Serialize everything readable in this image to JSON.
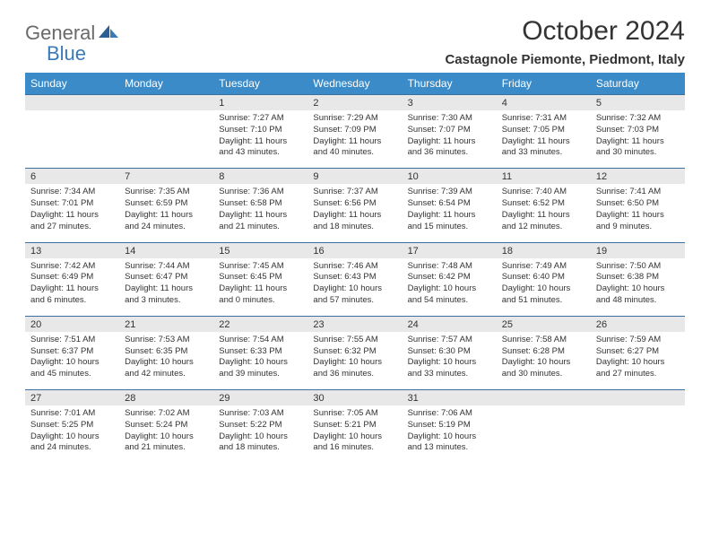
{
  "brand": {
    "part1": "General",
    "part2": "Blue"
  },
  "title": "October 2024",
  "location": "Castagnole Piemonte, Piedmont, Italy",
  "colors": {
    "header_bg": "#3b8bc9",
    "header_text": "#ffffff",
    "numrow_bg": "#e8e8e8",
    "rule": "#3b6fa0",
    "logo_gray": "#6a6a6a",
    "logo_blue": "#3a7ab8"
  },
  "weekdays": [
    "Sunday",
    "Monday",
    "Tuesday",
    "Wednesday",
    "Thursday",
    "Friday",
    "Saturday"
  ],
  "weeks": [
    {
      "nums": [
        "",
        "",
        "1",
        "2",
        "3",
        "4",
        "5"
      ],
      "cells": [
        {
          "sunrise": "",
          "sunset": "",
          "daylight": ""
        },
        {
          "sunrise": "",
          "sunset": "",
          "daylight": ""
        },
        {
          "sunrise": "Sunrise: 7:27 AM",
          "sunset": "Sunset: 7:10 PM",
          "daylight": "Daylight: 11 hours and 43 minutes."
        },
        {
          "sunrise": "Sunrise: 7:29 AM",
          "sunset": "Sunset: 7:09 PM",
          "daylight": "Daylight: 11 hours and 40 minutes."
        },
        {
          "sunrise": "Sunrise: 7:30 AM",
          "sunset": "Sunset: 7:07 PM",
          "daylight": "Daylight: 11 hours and 36 minutes."
        },
        {
          "sunrise": "Sunrise: 7:31 AM",
          "sunset": "Sunset: 7:05 PM",
          "daylight": "Daylight: 11 hours and 33 minutes."
        },
        {
          "sunrise": "Sunrise: 7:32 AM",
          "sunset": "Sunset: 7:03 PM",
          "daylight": "Daylight: 11 hours and 30 minutes."
        }
      ]
    },
    {
      "nums": [
        "6",
        "7",
        "8",
        "9",
        "10",
        "11",
        "12"
      ],
      "cells": [
        {
          "sunrise": "Sunrise: 7:34 AM",
          "sunset": "Sunset: 7:01 PM",
          "daylight": "Daylight: 11 hours and 27 minutes."
        },
        {
          "sunrise": "Sunrise: 7:35 AM",
          "sunset": "Sunset: 6:59 PM",
          "daylight": "Daylight: 11 hours and 24 minutes."
        },
        {
          "sunrise": "Sunrise: 7:36 AM",
          "sunset": "Sunset: 6:58 PM",
          "daylight": "Daylight: 11 hours and 21 minutes."
        },
        {
          "sunrise": "Sunrise: 7:37 AM",
          "sunset": "Sunset: 6:56 PM",
          "daylight": "Daylight: 11 hours and 18 minutes."
        },
        {
          "sunrise": "Sunrise: 7:39 AM",
          "sunset": "Sunset: 6:54 PM",
          "daylight": "Daylight: 11 hours and 15 minutes."
        },
        {
          "sunrise": "Sunrise: 7:40 AM",
          "sunset": "Sunset: 6:52 PM",
          "daylight": "Daylight: 11 hours and 12 minutes."
        },
        {
          "sunrise": "Sunrise: 7:41 AM",
          "sunset": "Sunset: 6:50 PM",
          "daylight": "Daylight: 11 hours and 9 minutes."
        }
      ]
    },
    {
      "nums": [
        "13",
        "14",
        "15",
        "16",
        "17",
        "18",
        "19"
      ],
      "cells": [
        {
          "sunrise": "Sunrise: 7:42 AM",
          "sunset": "Sunset: 6:49 PM",
          "daylight": "Daylight: 11 hours and 6 minutes."
        },
        {
          "sunrise": "Sunrise: 7:44 AM",
          "sunset": "Sunset: 6:47 PM",
          "daylight": "Daylight: 11 hours and 3 minutes."
        },
        {
          "sunrise": "Sunrise: 7:45 AM",
          "sunset": "Sunset: 6:45 PM",
          "daylight": "Daylight: 11 hours and 0 minutes."
        },
        {
          "sunrise": "Sunrise: 7:46 AM",
          "sunset": "Sunset: 6:43 PM",
          "daylight": "Daylight: 10 hours and 57 minutes."
        },
        {
          "sunrise": "Sunrise: 7:48 AM",
          "sunset": "Sunset: 6:42 PM",
          "daylight": "Daylight: 10 hours and 54 minutes."
        },
        {
          "sunrise": "Sunrise: 7:49 AM",
          "sunset": "Sunset: 6:40 PM",
          "daylight": "Daylight: 10 hours and 51 minutes."
        },
        {
          "sunrise": "Sunrise: 7:50 AM",
          "sunset": "Sunset: 6:38 PM",
          "daylight": "Daylight: 10 hours and 48 minutes."
        }
      ]
    },
    {
      "nums": [
        "20",
        "21",
        "22",
        "23",
        "24",
        "25",
        "26"
      ],
      "cells": [
        {
          "sunrise": "Sunrise: 7:51 AM",
          "sunset": "Sunset: 6:37 PM",
          "daylight": "Daylight: 10 hours and 45 minutes."
        },
        {
          "sunrise": "Sunrise: 7:53 AM",
          "sunset": "Sunset: 6:35 PM",
          "daylight": "Daylight: 10 hours and 42 minutes."
        },
        {
          "sunrise": "Sunrise: 7:54 AM",
          "sunset": "Sunset: 6:33 PM",
          "daylight": "Daylight: 10 hours and 39 minutes."
        },
        {
          "sunrise": "Sunrise: 7:55 AM",
          "sunset": "Sunset: 6:32 PM",
          "daylight": "Daylight: 10 hours and 36 minutes."
        },
        {
          "sunrise": "Sunrise: 7:57 AM",
          "sunset": "Sunset: 6:30 PM",
          "daylight": "Daylight: 10 hours and 33 minutes."
        },
        {
          "sunrise": "Sunrise: 7:58 AM",
          "sunset": "Sunset: 6:28 PM",
          "daylight": "Daylight: 10 hours and 30 minutes."
        },
        {
          "sunrise": "Sunrise: 7:59 AM",
          "sunset": "Sunset: 6:27 PM",
          "daylight": "Daylight: 10 hours and 27 minutes."
        }
      ]
    },
    {
      "nums": [
        "27",
        "28",
        "29",
        "30",
        "31",
        "",
        ""
      ],
      "cells": [
        {
          "sunrise": "Sunrise: 7:01 AM",
          "sunset": "Sunset: 5:25 PM",
          "daylight": "Daylight: 10 hours and 24 minutes."
        },
        {
          "sunrise": "Sunrise: 7:02 AM",
          "sunset": "Sunset: 5:24 PM",
          "daylight": "Daylight: 10 hours and 21 minutes."
        },
        {
          "sunrise": "Sunrise: 7:03 AM",
          "sunset": "Sunset: 5:22 PM",
          "daylight": "Daylight: 10 hours and 18 minutes."
        },
        {
          "sunrise": "Sunrise: 7:05 AM",
          "sunset": "Sunset: 5:21 PM",
          "daylight": "Daylight: 10 hours and 16 minutes."
        },
        {
          "sunrise": "Sunrise: 7:06 AM",
          "sunset": "Sunset: 5:19 PM",
          "daylight": "Daylight: 10 hours and 13 minutes."
        },
        {
          "sunrise": "",
          "sunset": "",
          "daylight": ""
        },
        {
          "sunrise": "",
          "sunset": "",
          "daylight": ""
        }
      ]
    }
  ]
}
